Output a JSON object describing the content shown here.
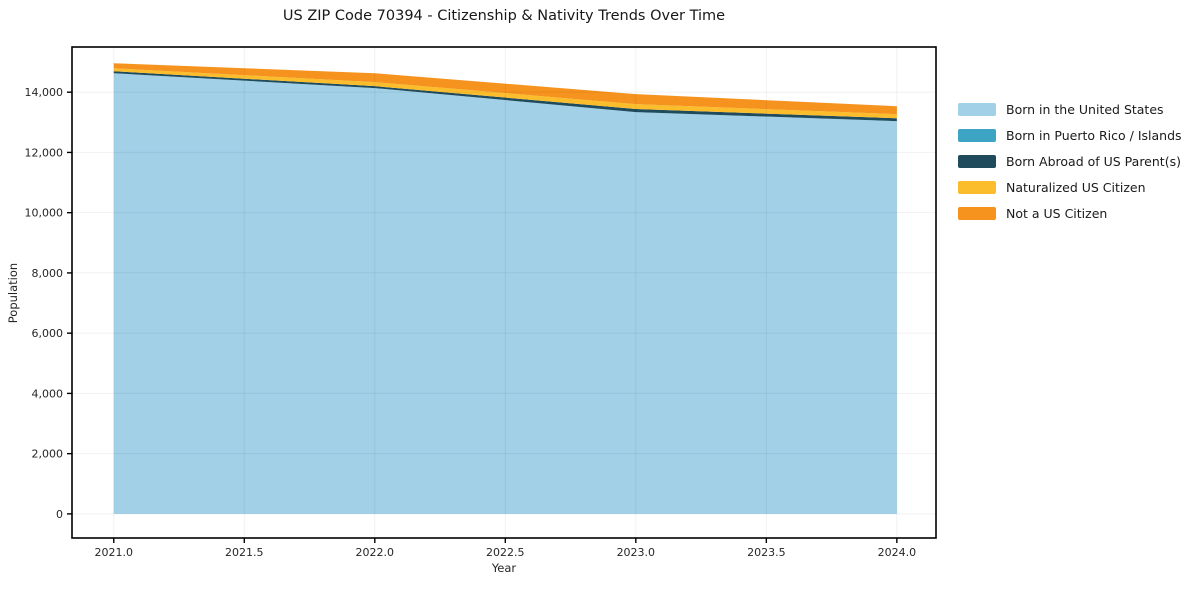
{
  "title": "US ZIP Code 70394 - Citizenship & Nativity Trends Over Time",
  "chart_data": {
    "type": "area",
    "stacked": true,
    "title": "US ZIP Code 70394 - Citizenship & Nativity Trends Over Time",
    "xlabel": "Year",
    "ylabel": "Population",
    "x": [
      2021,
      2022,
      2023,
      2024
    ],
    "series": [
      {
        "name": "Born in the United States",
        "color": "#a1d0e7",
        "values": [
          14630,
          14135,
          13340,
          13040
        ]
      },
      {
        "name": "Born in Puerto Rico / Islands",
        "color": "#3da4c4",
        "values": [
          0,
          0,
          0,
          0
        ]
      },
      {
        "name": "Born Abroad of US Parent(s)",
        "color": "#1f4b5c",
        "values": [
          65,
          65,
          100,
          95
        ]
      },
      {
        "name": "Naturalized US Citizen",
        "color": "#fbbd2c",
        "values": [
          100,
          135,
          165,
          135
        ]
      },
      {
        "name": "Not a US Citizen",
        "color": "#f6921e",
        "values": [
          165,
          295,
          330,
          265
        ]
      }
    ],
    "totals_by_year": [
      14960,
      14630,
      13935,
      13535
    ],
    "xlim": [
      2020.84,
      2024.15
    ],
    "ylim": [
      -800,
      15500
    ],
    "x_ticks": [
      2021.0,
      2021.5,
      2022.0,
      2022.5,
      2023.0,
      2023.5,
      2024.0
    ],
    "y_ticks": [
      0,
      2000,
      4000,
      6000,
      8000,
      10000,
      12000,
      14000
    ],
    "grid": true,
    "legend_position": "right of plot, no frame",
    "axis_color": "#000000",
    "tick_label_color": "#262626",
    "grid_color": "#ededed"
  }
}
